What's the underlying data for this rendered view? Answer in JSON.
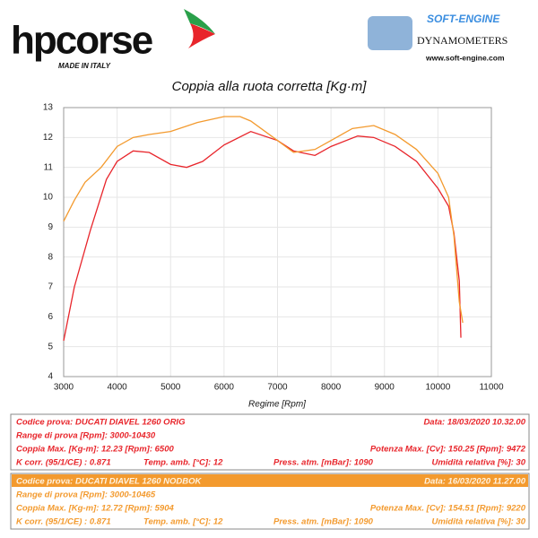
{
  "header": {
    "brand": "hpcorse",
    "brand_tagline": "MADE IN ITALY",
    "dyno_brand": "SOFT-ENGINE",
    "dyno_subtitle": "DYNAMOMETERS",
    "dyno_url": "www.soft-engine.com"
  },
  "chart_data": {
    "type": "line",
    "title": "Coppia alla ruota corretta [Kg·m]",
    "x_label": "Regime [Rpm]",
    "xlim": [
      3000,
      11000
    ],
    "xticks": [
      3000,
      4000,
      5000,
      6000,
      7000,
      8000,
      9000,
      10000,
      11000
    ],
    "ylim": [
      4,
      13
    ],
    "yticks": [
      4,
      5,
      6,
      7,
      8,
      9,
      10,
      11,
      12,
      13
    ],
    "grid": true,
    "series": [
      {
        "color": "#e8252b",
        "x": [
          3000,
          3200,
          3500,
          3800,
          4000,
          4300,
          4600,
          5000,
          5300,
          5600,
          6000,
          6500,
          7000,
          7300,
          7700,
          8000,
          8500,
          8800,
          9200,
          9600,
          10000,
          10200,
          10300,
          10400,
          10430
        ],
        "values": [
          5.2,
          7.0,
          8.9,
          10.6,
          11.2,
          11.55,
          11.5,
          11.1,
          11.0,
          11.2,
          11.75,
          12.2,
          11.9,
          11.55,
          11.4,
          11.7,
          12.05,
          12.0,
          11.7,
          11.2,
          10.3,
          9.7,
          8.8,
          7.2,
          5.3
        ]
      },
      {
        "color": "#f39a2e",
        "x": [
          3000,
          3200,
          3400,
          3700,
          4000,
          4300,
          4600,
          5000,
          5500,
          6000,
          6300,
          6500,
          7000,
          7300,
          7700,
          8000,
          8400,
          8800,
          9200,
          9600,
          10000,
          10200,
          10300,
          10400,
          10465
        ],
        "values": [
          9.2,
          9.9,
          10.5,
          11.0,
          11.7,
          12.0,
          12.1,
          12.2,
          12.5,
          12.7,
          12.7,
          12.55,
          11.9,
          11.5,
          11.6,
          11.9,
          12.3,
          12.4,
          12.1,
          11.6,
          10.8,
          10.0,
          8.7,
          6.5,
          5.8
        ]
      }
    ]
  },
  "panels": [
    {
      "color": "#e8252b",
      "rows": [
        [
          "Codice prova: DUCATI DIAVEL 1260 ORIG",
          "Data: 18/03/2020   10.32.00"
        ],
        [
          "Range di prova [Rpm]: 3000-10430"
        ],
        [
          "Coppia Max. [Kg-m]: 12.23  [Rpm]: 6500",
          "Potenza Max. [Cv]: 150.25  [Rpm]: 9472"
        ],
        [
          "K corr. (95/1/CE) : 0.871",
          "Temp. amb. [°C]: 12",
          "Press. atm. [mBar]: 1090",
          "Umidità relativa [%]: 30"
        ]
      ]
    },
    {
      "color": "#f39a2e",
      "rows": [
        [
          "Codice prova: DUCATI DIAVEL 1260 NODBOK",
          "Data: 16/03/2020   11.27.00"
        ],
        [
          "Range di prova [Rpm]: 3000-10465"
        ],
        [
          "Coppia Max. [Kg-m]: 12.72  [Rpm]: 5904",
          "Potenza Max. [Cv]: 154.51  [Rpm]: 9220"
        ],
        [
          "K corr. (95/1/CE) : 0.871",
          "Temp. amb. [°C]: 12",
          "Press. atm. [mBar]: 1090",
          "Umidità relativa [%]: 30"
        ]
      ]
    }
  ]
}
